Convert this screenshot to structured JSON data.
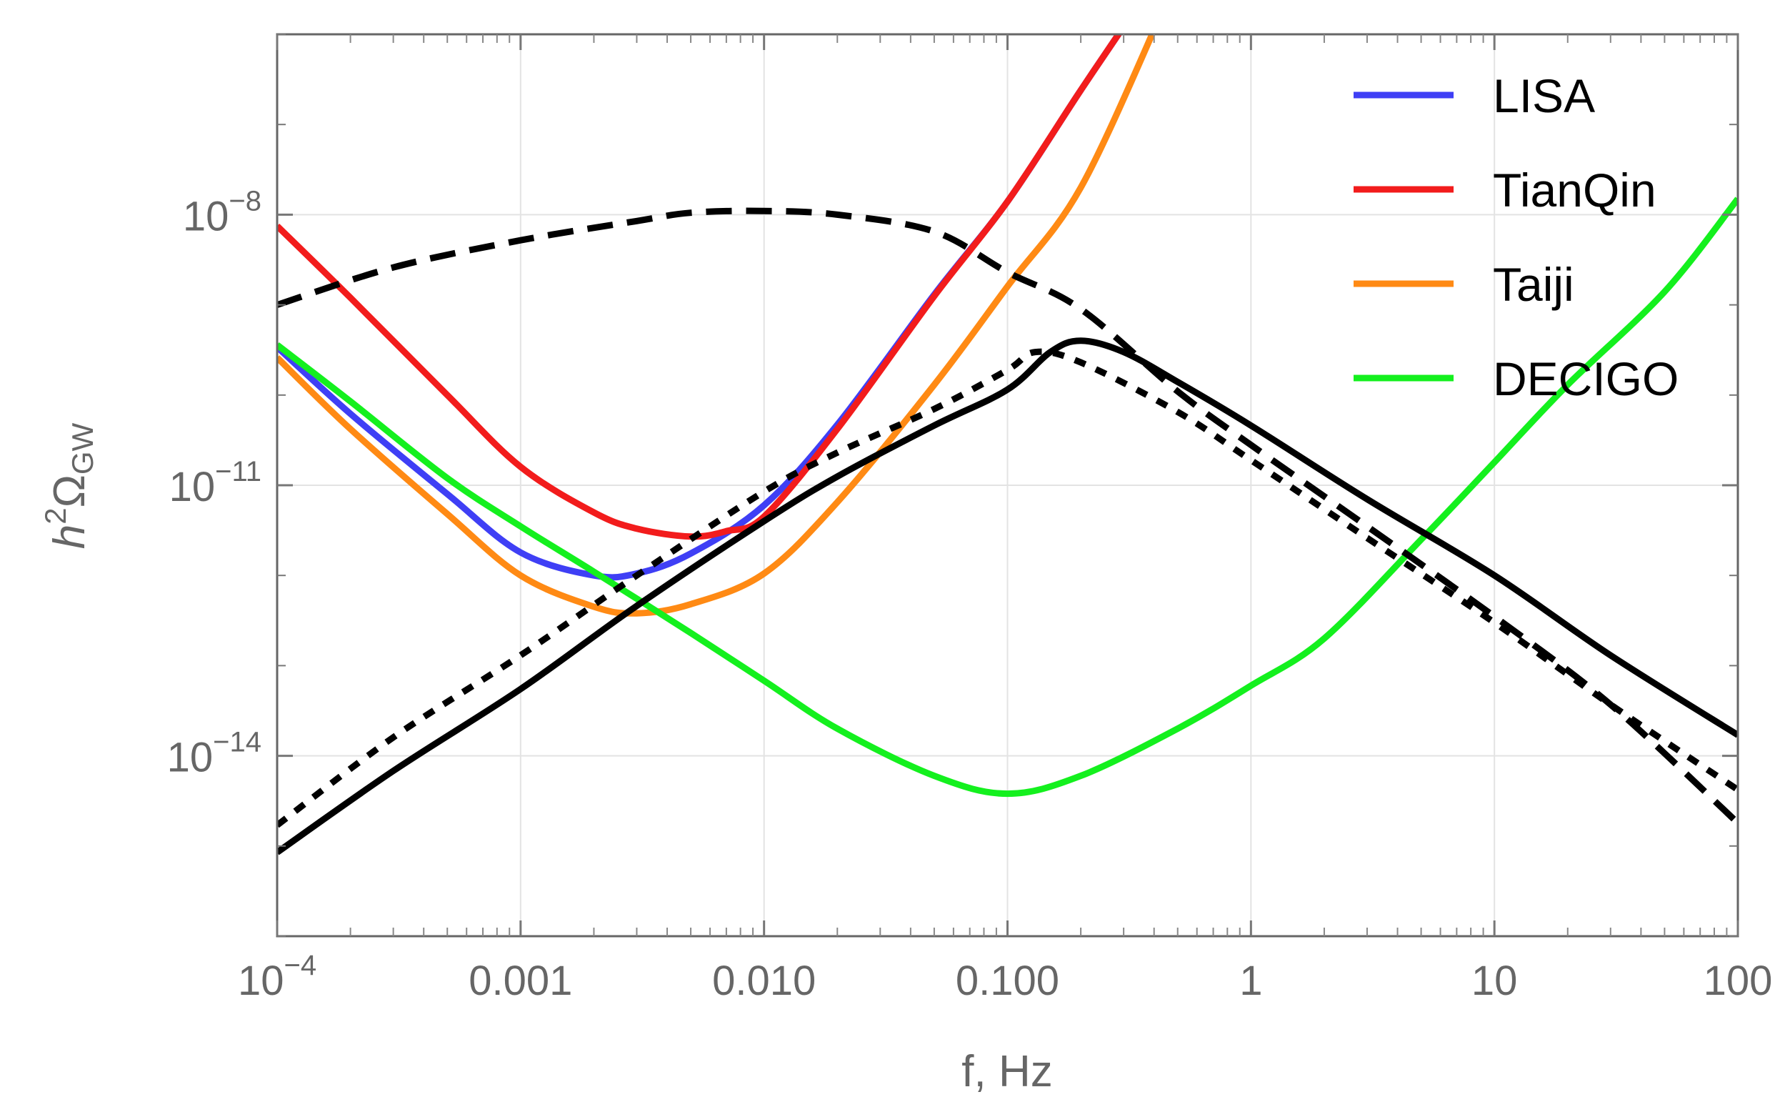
{
  "chart_data": {
    "type": "line",
    "xlabel": "f, Hz",
    "ylabel": {
      "base": "h",
      "sup": "2",
      "main": "Ω",
      "sub": "GW"
    },
    "x_scale": "log",
    "y_scale": "log",
    "xlim": [
      0.0001,
      100
    ],
    "ylim": [
      1e-16,
      1e-06
    ],
    "grid": true,
    "legend_position": "top-right",
    "x_ticks": [
      {
        "value": 0.0001,
        "base": "10",
        "exp": "−4"
      },
      {
        "value": 0.001,
        "label": "0.001"
      },
      {
        "value": 0.01,
        "label": "0.010"
      },
      {
        "value": 0.1,
        "label": "0.100"
      },
      {
        "value": 1,
        "label": "1"
      },
      {
        "value": 10,
        "label": "10"
      },
      {
        "value": 100,
        "label": "100"
      }
    ],
    "y_ticks": [
      {
        "value": 1e-08,
        "base": "10",
        "exp": "−8"
      },
      {
        "value": 1e-11,
        "base": "10",
        "exp": "−11"
      },
      {
        "value": 1e-14,
        "base": "10",
        "exp": "−14"
      }
    ],
    "series": [
      {
        "name": "LISA",
        "color": "#3f3ff5",
        "legend": true,
        "points": [
          [
            0.0001,
            3.4e-10
          ],
          [
            0.0002,
            6.2e-11
          ],
          [
            0.0005,
            8e-12
          ],
          [
            0.001,
            1.8e-12
          ],
          [
            0.002,
            1e-12
          ],
          [
            0.003,
            1.05e-12
          ],
          [
            0.005,
            1.75e-12
          ],
          [
            0.01,
            6e-12
          ],
          [
            0.02,
            4.7e-11
          ],
          [
            0.05,
            1.3e-09
          ],
          [
            0.1,
            1.4e-08
          ],
          [
            0.2,
            2.4e-07
          ],
          [
            0.34,
            2e-06
          ]
        ]
      },
      {
        "name": "TianQin",
        "color": "#f21c1c",
        "legend": true,
        "points": [
          [
            0.0001,
            7.5e-09
          ],
          [
            0.0002,
            1.2e-09
          ],
          [
            0.0005,
            1e-10
          ],
          [
            0.001,
            1.6e-11
          ],
          [
            0.002,
            5e-12
          ],
          [
            0.003,
            3.3e-12
          ],
          [
            0.005,
            2.7e-12
          ],
          [
            0.007,
            3.1e-12
          ],
          [
            0.01,
            4.5e-12
          ],
          [
            0.02,
            4.2e-11
          ],
          [
            0.05,
            1.25e-09
          ],
          [
            0.1,
            1.4e-08
          ],
          [
            0.2,
            2.4e-07
          ],
          [
            0.34,
            2e-06
          ]
        ]
      },
      {
        "name": "Taiji",
        "color": "#ff8a14",
        "legend": true,
        "points": [
          [
            0.0001,
            2.6e-10
          ],
          [
            0.0002,
            4.2e-11
          ],
          [
            0.0005,
            4.8e-12
          ],
          [
            0.001,
            1e-12
          ],
          [
            0.002,
            4.5e-13
          ],
          [
            0.003,
            3.8e-13
          ],
          [
            0.005,
            4.8e-13
          ],
          [
            0.01,
            1.05e-12
          ],
          [
            0.02,
            6.5e-12
          ],
          [
            0.05,
            1.3e-10
          ],
          [
            0.1,
            1.6e-09
          ],
          [
            0.2,
            2e-08
          ],
          [
            0.44,
            2e-06
          ]
        ]
      },
      {
        "name": "DECIGO",
        "color": "#14f01e",
        "legend": true,
        "points": [
          [
            0.0001,
            3.6e-10
          ],
          [
            0.0002,
            8.5e-11
          ],
          [
            0.0005,
            1.2e-11
          ],
          [
            0.001,
            3.5e-12
          ],
          [
            0.002,
            1.1e-12
          ],
          [
            0.005,
            2.3e-13
          ],
          [
            0.01,
            6.8e-14
          ],
          [
            0.02,
            2e-14
          ],
          [
            0.05,
            6e-15
          ],
          [
            0.1,
            3.8e-15
          ],
          [
            0.2,
            6e-15
          ],
          [
            0.5,
            2e-14
          ],
          [
            1,
            6e-14
          ],
          [
            2,
            2e-13
          ],
          [
            5,
            2.5e-12
          ],
          [
            10,
            1.8e-11
          ],
          [
            20,
            1.3e-10
          ],
          [
            50,
            1.4e-09
          ],
          [
            100,
            1.5e-08
          ]
        ]
      },
      {
        "name": "",
        "color": "#000000",
        "dash": "solid",
        "legend": false,
        "points": [
          [
            0.0001,
            8.5e-16
          ],
          [
            0.0003,
            6.8e-15
          ],
          [
            0.001,
            5.5e-14
          ],
          [
            0.003,
            4.6e-13
          ],
          [
            0.01,
            4e-12
          ],
          [
            0.02,
            1.25e-11
          ],
          [
            0.05,
            4.6e-11
          ],
          [
            0.1,
            1.15e-10
          ],
          [
            0.15,
            3e-10
          ],
          [
            0.2,
            4e-10
          ],
          [
            0.3,
            3e-10
          ],
          [
            0.5,
            1.4e-10
          ],
          [
            1,
            4.6e-11
          ],
          [
            3,
            7e-12
          ],
          [
            10,
            1e-12
          ],
          [
            30,
            1.3e-13
          ],
          [
            100,
            1.7e-14
          ]
        ]
      },
      {
        "name": "",
        "color": "#000000",
        "dash": "dotted",
        "legend": false,
        "points": [
          [
            0.0001,
            1.7e-15
          ],
          [
            0.0003,
            1.6e-14
          ],
          [
            0.001,
            1.3e-13
          ],
          [
            0.003,
            1e-12
          ],
          [
            0.01,
            8.5e-12
          ],
          [
            0.02,
            2.3e-11
          ],
          [
            0.05,
            7e-11
          ],
          [
            0.1,
            1.9e-10
          ],
          [
            0.13,
            3e-10
          ],
          [
            0.2,
            2.3e-10
          ],
          [
            0.5,
            6.5e-11
          ],
          [
            1,
            1.9e-11
          ],
          [
            3,
            2.6e-12
          ],
          [
            10,
            3e-13
          ],
          [
            30,
            3.7e-14
          ],
          [
            100,
            4.2e-15
          ]
        ]
      },
      {
        "name": "",
        "color": "#000000",
        "dash": "dashed",
        "legend": false,
        "points": [
          [
            0.0001,
            1e-09
          ],
          [
            0.0003,
            2.6e-09
          ],
          [
            0.001,
            5.2e-09
          ],
          [
            0.003,
            8.5e-09
          ],
          [
            0.005,
            1.05e-08
          ],
          [
            0.01,
            1.1e-08
          ],
          [
            0.02,
            1e-08
          ],
          [
            0.05,
            6.5e-09
          ],
          [
            0.1,
            2.3e-09
          ],
          [
            0.2,
            9e-10
          ],
          [
            0.5,
            1.1e-10
          ],
          [
            1,
            2.8e-11
          ],
          [
            3,
            3.5e-12
          ],
          [
            10,
            3.5e-13
          ],
          [
            30,
            3.7e-14
          ],
          [
            100,
            1.8e-15
          ]
        ]
      }
    ]
  }
}
